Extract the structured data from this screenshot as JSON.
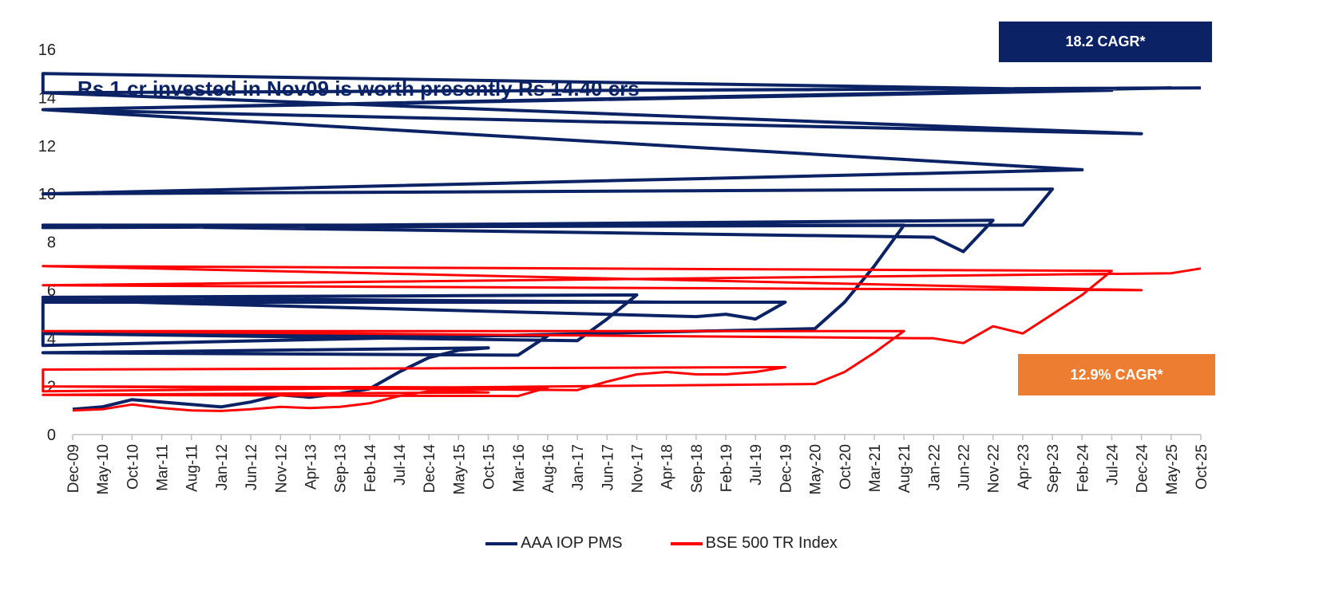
{
  "annotation": "Rs 1 cr invested in Nov09 is worth presently Rs 14.40 crs",
  "badges": {
    "top": {
      "label": "18.2 CAGR*",
      "color": "#0b2265"
    },
    "bottom": {
      "label": "12.9% CAGR*",
      "color": "#ed7d31"
    }
  },
  "legend": [
    {
      "label": "AAA IOP PMS",
      "color": "#0b2265"
    },
    {
      "label": "BSE 500 TR Index",
      "color": "#ff0000"
    }
  ],
  "chart_data": {
    "type": "line",
    "ylim": [
      0,
      16
    ],
    "yticks": [
      0,
      2,
      4,
      6,
      8,
      10,
      12,
      14,
      16
    ],
    "xticks": [
      "Dec-09",
      "May-10",
      "Oct-10",
      "Mar-11",
      "Aug-11",
      "Jan-12",
      "Jun-12",
      "Nov-12",
      "Apr-13",
      "Sep-13",
      "Feb-14",
      "Jul-14",
      "Dec-14",
      "May-15",
      "Oct-15",
      "Mar-16",
      "Aug-16",
      "Jan-17",
      "Jun-17",
      "Nov-17",
      "Apr-18",
      "Sep-18",
      "Feb-19",
      "Jul-19",
      "Dec-19",
      "May-20",
      "Oct-20",
      "Mar-21",
      "Aug-21",
      "Jan-22",
      "Jun-22",
      "Nov-22",
      "Apr-23",
      "Sep-23",
      "Feb-24",
      "Jul-24",
      "Dec-24",
      "May-25",
      "Oct-25"
    ],
    "grid": false,
    "legend_position": "bottom",
    "series": [
      {
        "name": "AAA IOP PMS",
        "color": "#0b2265",
        "x": [
          "Dec-09",
          "May-10",
          "Oct-10",
          "Mar-11",
          "Aug-11",
          "Jan-12",
          "Jun-12",
          "Nov-12",
          "Apr-13",
          "Sep-13",
          "Feb-14",
          "Jul-14",
          "Dec-14",
          "May-15",
          "Oct-15",
          "Jan-16",
          "Mar-16",
          "Aug-16",
          "Oct-16",
          "Jan-17",
          "Jun-17",
          "Nov-17",
          "Jan-18",
          "Apr-18",
          "Jul-18",
          "Sep-18",
          "Feb-19",
          "Jul-19",
          "Dec-19",
          "Feb-20",
          "Mar-20",
          "May-20",
          "Oct-20",
          "Mar-21",
          "Aug-21",
          "Oct-21",
          "Jan-22",
          "Jun-22",
          "Nov-22",
          "Feb-23",
          "Apr-23",
          "Sep-23",
          "Oct-23",
          "Feb-24",
          "Jun-24",
          "Jul-24",
          "Sep-24",
          "Oct-24",
          "Dec-24",
          "Feb-25",
          "May-25",
          "Aug-25",
          "Oct-25"
        ],
        "values": [
          1.05,
          1.15,
          1.45,
          1.35,
          1.25,
          1.15,
          1.35,
          1.65,
          1.55,
          1.7,
          1.9,
          2.6,
          3.2,
          3.5,
          3.6,
          3.4,
          3.3,
          4.1,
          4.2,
          3.9,
          4.8,
          5.8,
          5.7,
          5.5,
          5.6,
          4.9,
          5.0,
          4.8,
          5.5,
          5.5,
          3.7,
          4.4,
          5.5,
          7.0,
          8.7,
          8.7,
          8.2,
          7.6,
          8.9,
          8.6,
          8.7,
          10.2,
          10.0,
          11.0,
          13.5,
          14.3,
          15.0,
          14.2,
          12.5,
          13.5,
          14.4,
          14.2,
          14.4
        ]
      },
      {
        "name": "BSE 500 TR Index",
        "color": "#ff0000",
        "x": [
          "Dec-09",
          "May-10",
          "Oct-10",
          "Mar-11",
          "Aug-11",
          "Jan-12",
          "Jun-12",
          "Nov-12",
          "Apr-13",
          "Sep-13",
          "Feb-14",
          "Jul-14",
          "Dec-14",
          "May-15",
          "Oct-15",
          "Jan-16",
          "Mar-16",
          "Aug-16",
          "Oct-16",
          "Jan-17",
          "Jun-17",
          "Nov-17",
          "Apr-18",
          "Sep-18",
          "Feb-19",
          "Jul-19",
          "Dec-19",
          "Feb-20",
          "Mar-20",
          "May-20",
          "Oct-20",
          "Mar-21",
          "Aug-21",
          "Oct-21",
          "Jan-22",
          "Jun-22",
          "Nov-22",
          "Apr-23",
          "Sep-23",
          "Feb-24",
          "Jul-24",
          "Sep-24",
          "Dec-24",
          "Feb-25",
          "May-25",
          "Oct-25"
        ],
        "values": [
          1.0,
          1.05,
          1.25,
          1.1,
          1.0,
          0.98,
          1.05,
          1.15,
          1.1,
          1.15,
          1.3,
          1.6,
          1.8,
          1.8,
          1.75,
          1.65,
          1.6,
          1.95,
          2.0,
          1.85,
          2.2,
          2.5,
          2.6,
          2.5,
          2.5,
          2.6,
          2.8,
          2.7,
          1.8,
          2.1,
          2.6,
          3.4,
          4.3,
          4.3,
          4.0,
          3.8,
          4.5,
          4.2,
          5.0,
          5.8,
          6.8,
          7.0,
          6.0,
          6.2,
          6.7,
          6.9
        ]
      }
    ]
  }
}
